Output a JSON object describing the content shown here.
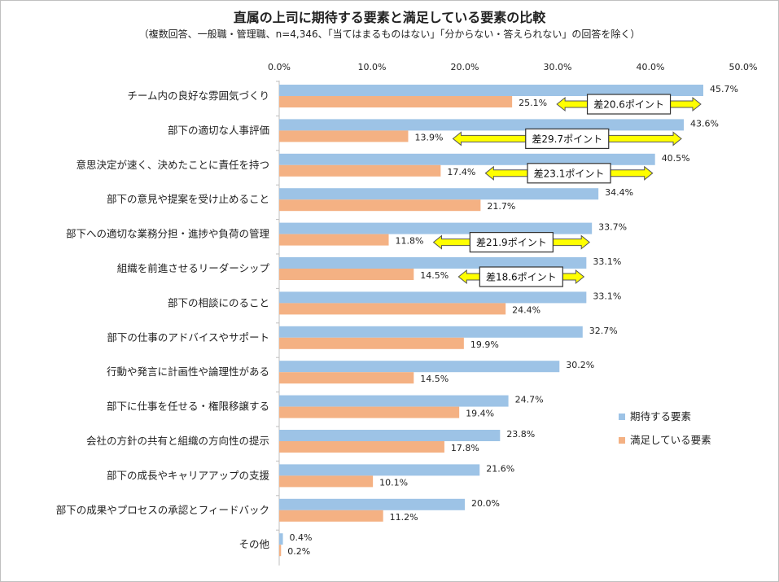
{
  "chart_data": {
    "type": "bar",
    "orientation": "horizontal",
    "title": "直属の上司に期待する要素と満足している要素の比較",
    "subtitle": "（複数回答、一般職・管理職、n=4,346、「当てはまるものはない」「分からない・答えられない」の回答を除く）",
    "x_ticks": [
      "0.0%",
      "10.0%",
      "20.0%",
      "30.0%",
      "40.0%",
      "50.0%"
    ],
    "xlim": [
      0,
      50
    ],
    "grid": false,
    "legend_position": "right",
    "categories": [
      "チーム内の良好な雰囲気づくり",
      "部下の適切な人事評価",
      "意思決定が速く、決めたことに責任を持つ",
      "部下の意見や提案を受け止めること",
      "部下への適切な業務分担・進捗や負荷の管理",
      "組織を前進させるリーダーシップ",
      "部下の相談にのること",
      "部下の仕事のアドバイスやサポート",
      "行動や発言に計画性や論理性がある",
      "部下に仕事を任せる・権限移譲する",
      "会社の方針の共有と組織の方向性の提示",
      "部下の成長やキャリアアップの支援",
      "部下の成果やプロセスの承認とフィードバック",
      "その他"
    ],
    "series": [
      {
        "name": "期待する要素",
        "color": "#9dc3e6",
        "values": [
          45.7,
          43.6,
          40.5,
          34.4,
          33.7,
          33.1,
          33.1,
          32.7,
          30.2,
          24.7,
          23.8,
          21.6,
          20.0,
          0.4
        ],
        "labels": [
          "45.7%",
          "43.6%",
          "40.5%",
          "34.4%",
          "33.7%",
          "33.1%",
          "33.1%",
          "32.7%",
          "30.2%",
          "24.7%",
          "23.8%",
          "21.6%",
          "20.0%",
          "0.4%"
        ]
      },
      {
        "name": "満足している要素",
        "color": "#f4b183",
        "values": [
          25.1,
          13.9,
          17.4,
          21.7,
          11.8,
          14.5,
          24.4,
          19.9,
          14.5,
          19.4,
          17.8,
          10.1,
          11.2,
          0.2
        ],
        "labels": [
          "25.1%",
          "13.9%",
          "17.4%",
          "21.7%",
          "11.8%",
          "14.5%",
          "24.4%",
          "19.9%",
          "14.5%",
          "19.4%",
          "17.8%",
          "10.1%",
          "11.2%",
          "0.2%"
        ]
      }
    ],
    "annotations": [
      {
        "category_index": 0,
        "text": "差20.6ポイント"
      },
      {
        "category_index": 1,
        "text": "差29.7ポイント"
      },
      {
        "category_index": 2,
        "text": "差23.1ポイント"
      },
      {
        "category_index": 4,
        "text": "差21.9ポイント"
      },
      {
        "category_index": 5,
        "text": "差18.6ポイント"
      }
    ]
  }
}
